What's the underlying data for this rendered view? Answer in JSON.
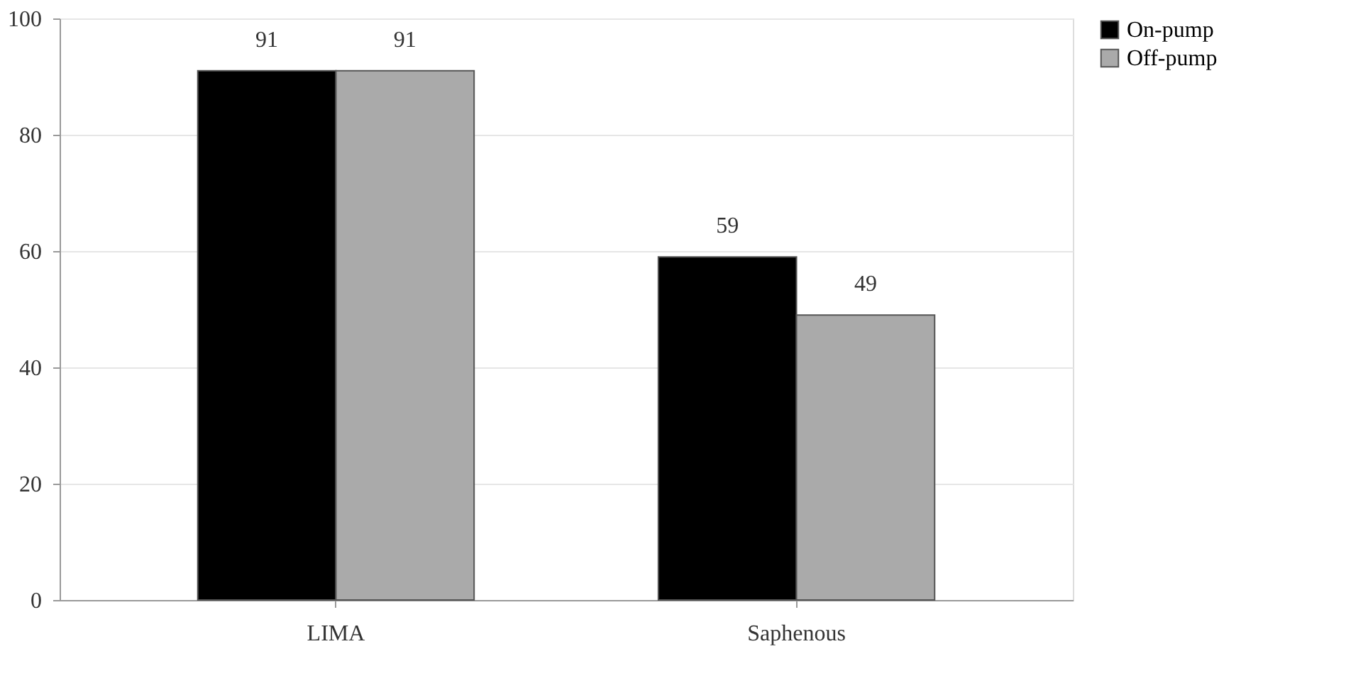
{
  "chart_data": {
    "type": "bar",
    "categories": [
      "LIMA",
      "Saphenous"
    ],
    "series": [
      {
        "name": "On-pump",
        "color": "#000000",
        "values": [
          91,
          59
        ]
      },
      {
        "name": "Off-pump",
        "color": "#aaaaaa",
        "values": [
          91,
          49
        ]
      }
    ],
    "ylim": [
      0,
      100
    ],
    "yticks": [
      0,
      20,
      40,
      60,
      80,
      100
    ],
    "grid": "y",
    "legend": "right",
    "data_labels": true
  }
}
